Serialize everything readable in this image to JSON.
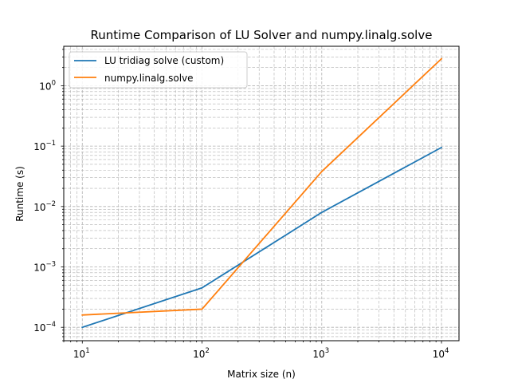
{
  "chart_data": {
    "type": "line",
    "title": "Runtime Comparison of LU Solver and numpy.linalg.solve",
    "xlabel": "Matrix size (n)",
    "ylabel": "Runtime (s)",
    "xscale": "log",
    "yscale": "log",
    "xlim": [
      7,
      14000
    ],
    "ylim": [
      6e-05,
      4.5
    ],
    "grid": true,
    "grid_which": "both",
    "legend_position": "top-left",
    "x_ticks": [
      {
        "value": 10,
        "base": "10",
        "exp": "1"
      },
      {
        "value": 100,
        "base": "10",
        "exp": "2"
      },
      {
        "value": 1000,
        "base": "10",
        "exp": "3"
      },
      {
        "value": 10000,
        "base": "10",
        "exp": "4"
      }
    ],
    "y_ticks": [
      {
        "value": 0.0001,
        "base": "10",
        "exp": "−4"
      },
      {
        "value": 0.001,
        "base": "10",
        "exp": "−3"
      },
      {
        "value": 0.01,
        "base": "10",
        "exp": "−2"
      },
      {
        "value": 0.1,
        "base": "10",
        "exp": "−1"
      },
      {
        "value": 1,
        "base": "10",
        "exp": "0"
      }
    ],
    "x": [
      10,
      100,
      1000,
      10000
    ],
    "series": [
      {
        "name": "LU tridiag solve (custom)",
        "color": "#1f77b4",
        "values": [
          0.0001,
          0.00045,
          0.008,
          0.095
        ]
      },
      {
        "name": "numpy.linalg.solve",
        "color": "#ff7f0e",
        "values": [
          0.00016,
          0.0002,
          0.038,
          2.8
        ]
      }
    ]
  }
}
